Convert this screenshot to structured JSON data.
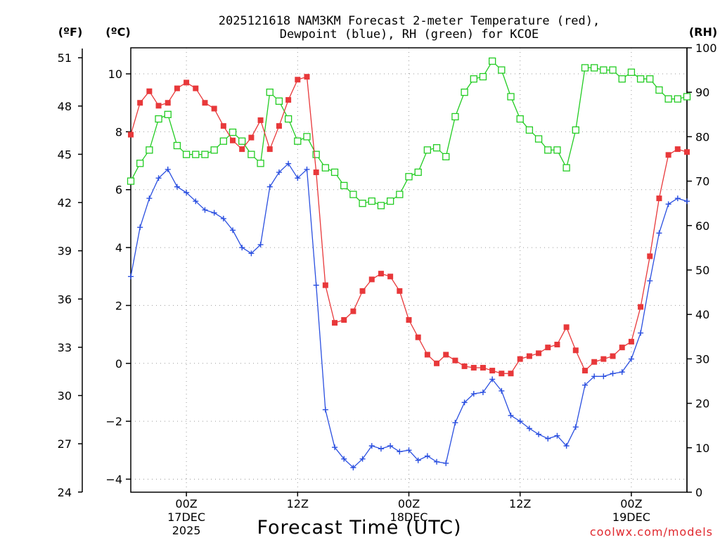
{
  "chart_data": {
    "type": "line",
    "title_line1": "2025121618 NAM3KM Forecast 2-meter Temperature (red),",
    "title_line2": "Dewpoint (blue), RH (green) for KCOE",
    "unit_f": "(ºF)",
    "unit_c": "(ºC)",
    "unit_rh": "(RH)",
    "xlabel": "Forecast Time (UTC)",
    "credit": "coolwx.com/models",
    "x_hours": [
      0,
      1,
      2,
      3,
      4,
      5,
      6,
      7,
      8,
      9,
      10,
      11,
      12,
      13,
      14,
      15,
      16,
      17,
      18,
      19,
      20,
      21,
      22,
      23,
      24,
      25,
      26,
      27,
      28,
      29,
      30,
      31,
      32,
      33,
      34,
      35,
      36,
      37,
      38,
      39,
      40,
      41,
      42,
      43,
      44,
      45,
      46,
      47,
      48,
      49,
      50,
      51,
      52,
      53,
      54,
      55,
      56,
      57,
      58,
      59,
      60
    ],
    "xlim": [
      0,
      60
    ],
    "celsius_range": [
      -4.45,
      10.9
    ],
    "celsius_ticks": [
      -4,
      -2,
      0,
      2,
      4,
      6,
      8,
      10
    ],
    "fahrenheit_ticks": [
      24,
      27,
      30,
      33,
      36,
      39,
      42,
      45,
      48,
      51
    ],
    "rh_range": [
      0,
      100
    ],
    "rh_ticks": [
      0,
      10,
      20,
      30,
      40,
      50,
      60,
      70,
      80,
      90,
      100
    ],
    "x_ticks": [
      {
        "hour": 6,
        "label": "00Z",
        "date": "17DEC",
        "year": "2025"
      },
      {
        "hour": 18,
        "label": "12Z",
        "date": "",
        "year": ""
      },
      {
        "hour": 30,
        "label": "00Z",
        "date": "18DEC",
        "year": ""
      },
      {
        "hour": 42,
        "label": "12Z",
        "date": "",
        "year": ""
      },
      {
        "hour": 54,
        "label": "00Z",
        "date": "19DEC",
        "year": ""
      }
    ],
    "series": [
      {
        "name": "Temperature",
        "unit": "C",
        "color": "#e8383a",
        "marker": "filled-square",
        "values": [
          7.9,
          9.0,
          9.4,
          8.9,
          9.0,
          9.5,
          9.7,
          9.5,
          9.0,
          8.8,
          8.2,
          7.7,
          7.4,
          7.8,
          8.4,
          7.4,
          8.2,
          9.1,
          9.8,
          9.9,
          6.6,
          2.7,
          1.4,
          1.5,
          1.8,
          2.5,
          2.9,
          3.1,
          3.0,
          2.5,
          1.5,
          0.9,
          0.3,
          0.0,
          0.3,
          0.1,
          -0.1,
          -0.15,
          -0.15,
          -0.25,
          -0.35,
          -0.35,
          0.15,
          0.25,
          0.35,
          0.55,
          0.65,
          1.25,
          0.45,
          -0.25,
          0.05,
          0.15,
          0.25,
          0.55,
          0.75,
          1.95,
          3.7,
          5.7,
          7.2,
          7.4,
          7.3
        ]
      },
      {
        "name": "Dewpoint",
        "unit": "C",
        "color": "#2a4fe0",
        "marker": "plus",
        "values": [
          3.0,
          4.7,
          5.7,
          6.4,
          6.7,
          6.1,
          5.9,
          5.6,
          5.3,
          5.2,
          5.0,
          4.6,
          4.0,
          3.8,
          4.1,
          6.1,
          6.6,
          6.9,
          6.4,
          6.7,
          2.7,
          -1.6,
          -2.9,
          -3.3,
          -3.6,
          -3.3,
          -2.85,
          -2.95,
          -2.85,
          -3.05,
          -3.0,
          -3.35,
          -3.2,
          -3.4,
          -3.45,
          -2.05,
          -1.35,
          -1.05,
          -1.0,
          -0.55,
          -0.95,
          -1.8,
          -2.0,
          -2.25,
          -2.45,
          -2.6,
          -2.5,
          -2.85,
          -2.2,
          -0.75,
          -0.45,
          -0.45,
          -0.35,
          -0.3,
          0.15,
          1.05,
          2.85,
          4.5,
          5.5,
          5.7,
          5.6
        ]
      },
      {
        "name": "RH",
        "unit": "%",
        "color": "#22cc22",
        "marker": "open-square",
        "values": [
          70,
          74,
          77,
          84,
          85,
          78,
          76,
          76,
          76,
          77,
          79,
          81,
          79,
          76,
          74,
          90,
          88,
          84,
          79,
          80,
          76,
          73,
          72,
          69,
          67,
          65,
          65.5,
          64.5,
          65.5,
          67,
          71,
          72,
          77,
          77.5,
          75.5,
          84.5,
          90,
          93,
          93.5,
          97,
          95,
          89,
          84,
          81.5,
          79.5,
          77,
          77,
          73,
          81.5,
          95.5,
          95.5,
          95,
          95,
          93,
          94.5,
          93,
          93,
          90.5,
          88.5,
          88.5,
          89
        ]
      }
    ]
  }
}
